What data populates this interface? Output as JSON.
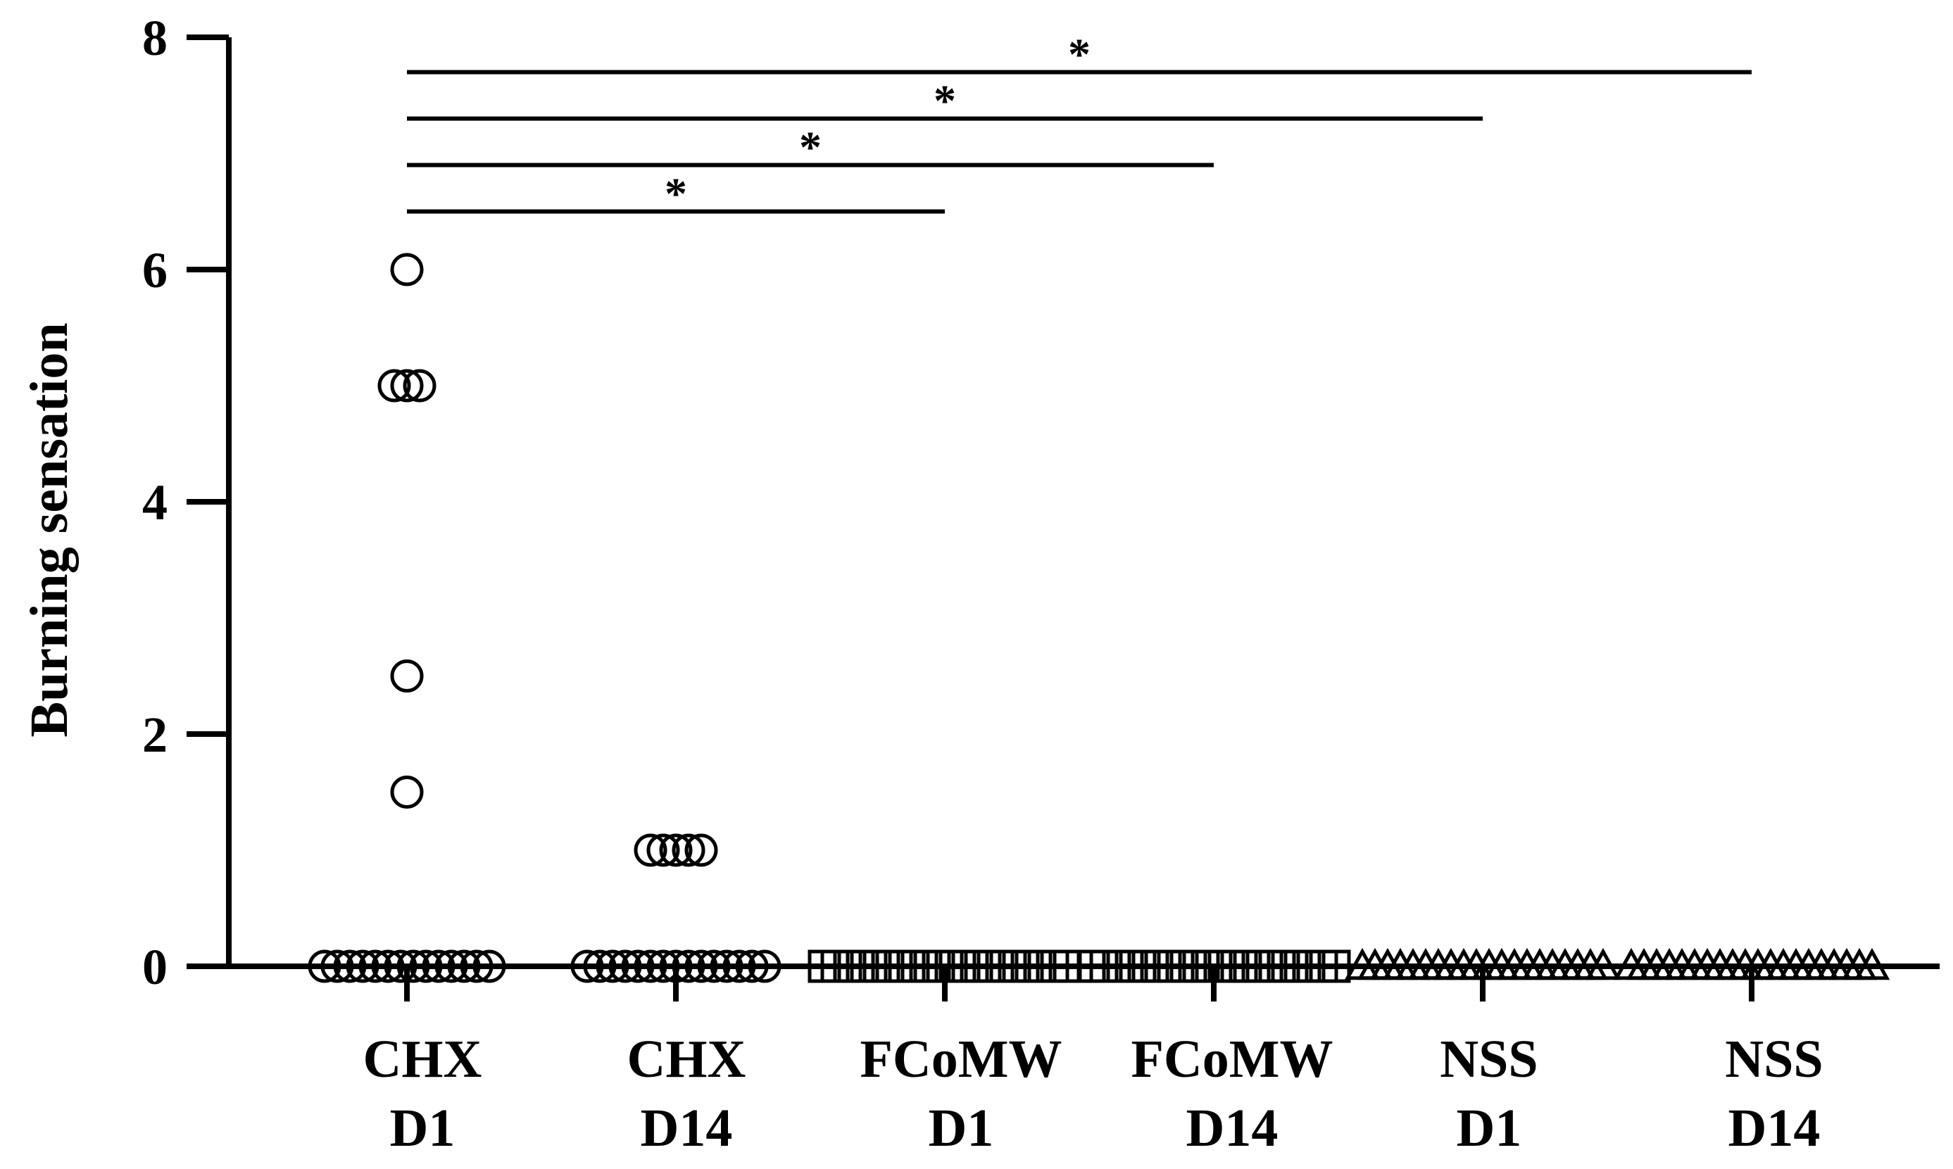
{
  "chart_data": {
    "type": "scatter",
    "ylabel": "Burning sensation",
    "xlabel": "",
    "ylim": [
      0,
      8
    ],
    "yticks": [
      0,
      2,
      4,
      6,
      8
    ],
    "categories": [
      {
        "line1": "CHX",
        "line2": "D1",
        "marker": "circle"
      },
      {
        "line1": "CHX",
        "line2": "D14",
        "marker": "circle"
      },
      {
        "line1": "FCoMW",
        "line2": "D1",
        "marker": "square"
      },
      {
        "line1": "FCoMW",
        "line2": "D14",
        "marker": "square"
      },
      {
        "line1": "NSS",
        "line2": "D1",
        "marker": "triangle"
      },
      {
        "line1": "NSS",
        "line2": "D14",
        "marker": "triangle"
      }
    ],
    "series": [
      {
        "values": [
          6,
          5,
          5,
          5,
          2.5,
          1.5,
          0,
          0,
          0,
          0,
          0,
          0,
          0,
          0,
          0,
          0,
          0,
          0,
          0,
          0
        ]
      },
      {
        "values": [
          1,
          1,
          1,
          1,
          1,
          0,
          0,
          0,
          0,
          0,
          0,
          0,
          0,
          0,
          0,
          0,
          0,
          0,
          0,
          0
        ]
      },
      {
        "values": [
          0,
          0,
          0,
          0,
          0,
          0,
          0,
          0,
          0,
          0,
          0,
          0,
          0,
          0,
          0,
          0,
          0,
          0,
          0,
          0
        ]
      },
      {
        "values": [
          0,
          0,
          0,
          0,
          0,
          0,
          0,
          0,
          0,
          0,
          0,
          0,
          0,
          0,
          0,
          0,
          0,
          0,
          0,
          0
        ]
      },
      {
        "values": [
          0,
          0,
          0,
          0,
          0,
          0,
          0,
          0,
          0,
          0,
          0,
          0,
          0,
          0,
          0,
          0,
          0,
          0,
          0,
          0
        ]
      },
      {
        "values": [
          0,
          0,
          0,
          0,
          0,
          0,
          0,
          0,
          0,
          0,
          0,
          0,
          0,
          0,
          0,
          0,
          0,
          0,
          0,
          0
        ]
      }
    ],
    "significance": [
      {
        "from": 0,
        "to": 2,
        "y": 6.5,
        "label": "*"
      },
      {
        "from": 0,
        "to": 3,
        "y": 6.9,
        "label": "*"
      },
      {
        "from": 0,
        "to": 4,
        "y": 7.3,
        "label": "*"
      },
      {
        "from": 0,
        "to": 5,
        "y": 7.7,
        "label": "*"
      }
    ],
    "grid": false,
    "legend": "none"
  }
}
